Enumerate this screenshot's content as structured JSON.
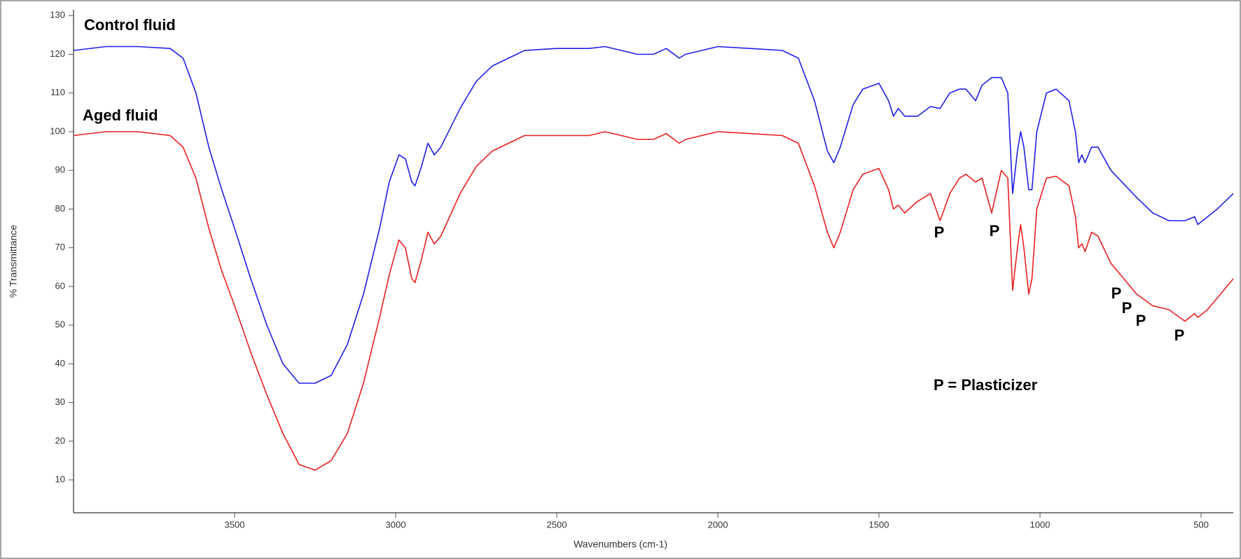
{
  "chart_data": {
    "type": "line",
    "x_label": "Wavenumbers (cm-1)",
    "y_label": "% Transmittance",
    "xlim": [
      4000,
      400
    ],
    "ylim": [
      1.5,
      131.5
    ],
    "xticks": [
      3500,
      3000,
      2500,
      2000,
      1500,
      1000,
      500
    ],
    "yticks": [
      10,
      20,
      30,
      40,
      50,
      60,
      70,
      80,
      90,
      100,
      110,
      120,
      130
    ],
    "annotations": [
      "Control fluid",
      "Aged fluid",
      "P",
      "P",
      "P",
      "P",
      "P",
      "P",
      "P = Plasticizer"
    ],
    "x": [
      4000,
      3900,
      3800,
      3700,
      3660,
      3620,
      3580,
      3540,
      3500,
      3450,
      3400,
      3350,
      3300,
      3250,
      3200,
      3150,
      3100,
      3050,
      3020,
      2990,
      2970,
      2950,
      2940,
      2920,
      2900,
      2880,
      2860,
      2800,
      2750,
      2700,
      2600,
      2500,
      2400,
      2350,
      2300,
      2250,
      2200,
      2160,
      2120,
      2100,
      2050,
      2000,
      1900,
      1800,
      1750,
      1700,
      1660,
      1640,
      1620,
      1580,
      1550,
      1500,
      1470,
      1455,
      1440,
      1420,
      1380,
      1340,
      1310,
      1280,
      1250,
      1230,
      1200,
      1180,
      1150,
      1120,
      1100,
      1085,
      1070,
      1060,
      1050,
      1035,
      1025,
      1010,
      980,
      950,
      910,
      890,
      880,
      870,
      860,
      840,
      820,
      780,
      700,
      650,
      600,
      550,
      520,
      510,
      480,
      450,
      400
    ],
    "series": [
      {
        "name": "Control fluid",
        "color": "#1f1fe8",
        "values": [
          121,
          122,
          122,
          121.5,
          119,
          110,
          96,
          85,
          75,
          62,
          50,
          40,
          35,
          35,
          37,
          45,
          58,
          75,
          87,
          94,
          93,
          87,
          86,
          91,
          97,
          94,
          96,
          106,
          113,
          117,
          121,
          121.5,
          121.5,
          122,
          121,
          120,
          120,
          121.5,
          119,
          120,
          121,
          122,
          121.5,
          121,
          119,
          108,
          95,
          92,
          96,
          107,
          111,
          112.5,
          108,
          104,
          106,
          104,
          104,
          106.5,
          106,
          110,
          111,
          111,
          108,
          112,
          114,
          114,
          110,
          84,
          95,
          100,
          96,
          85,
          85,
          100,
          110,
          111,
          108,
          100,
          92,
          94,
          92,
          96,
          96,
          90,
          83,
          79,
          77,
          77,
          78,
          76,
          78,
          80,
          84
        ]
      },
      {
        "name": "Aged fluid",
        "color": "#e81f1f",
        "values": [
          99,
          100,
          100,
          99,
          96,
          88,
          75,
          64,
          55,
          43,
          32,
          22,
          14,
          12.5,
          15,
          22,
          35,
          52,
          63,
          72,
          70,
          62,
          61,
          67,
          74,
          71,
          73,
          84,
          91,
          95,
          99,
          99,
          99,
          100,
          99,
          98,
          98,
          99.5,
          97,
          98,
          99,
          100,
          99.5,
          99,
          97,
          86,
          74,
          70,
          74,
          85,
          89,
          90.5,
          85,
          80,
          81,
          79,
          82,
          84,
          77,
          84,
          88,
          89,
          87,
          88,
          79,
          90,
          88,
          59,
          70,
          76,
          70,
          58,
          62,
          80,
          88,
          88.5,
          86,
          78,
          70,
          71,
          69,
          74,
          73,
          66,
          58,
          55,
          54,
          51,
          53,
          52,
          54,
          57,
          62
        ]
      }
    ]
  }
}
